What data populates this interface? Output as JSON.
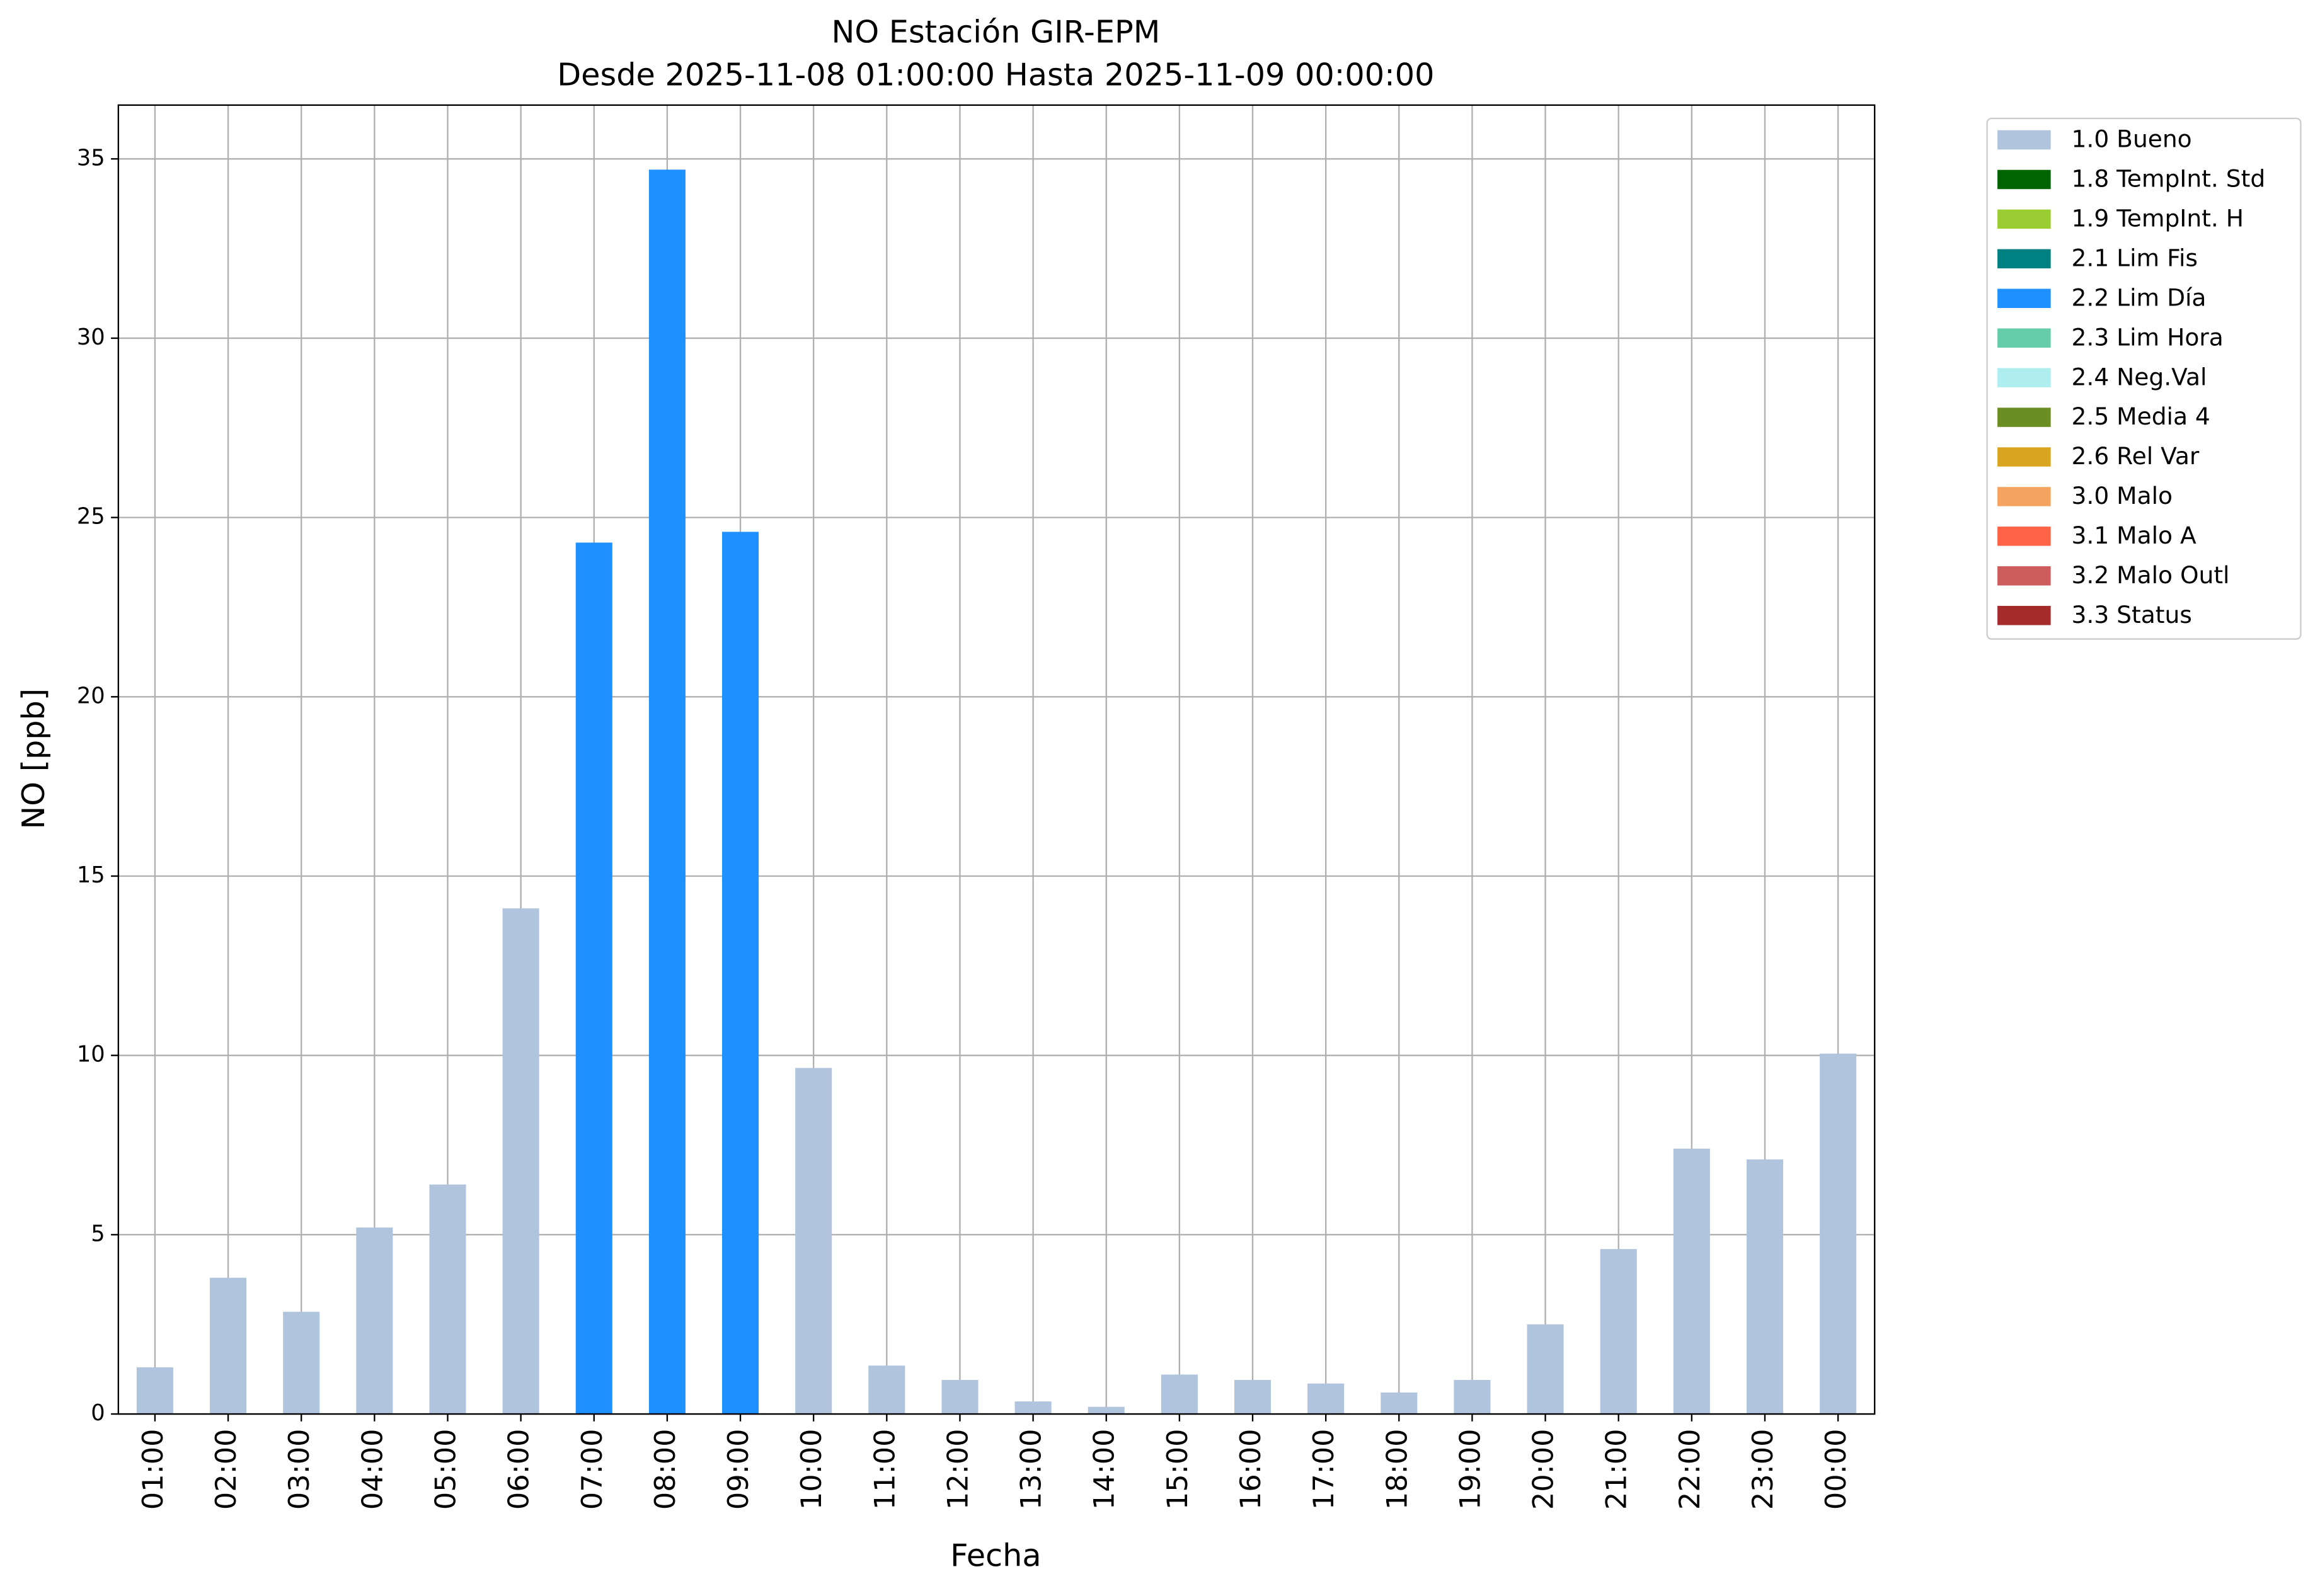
{
  "chart_data": {
    "type": "bar",
    "stacked": true,
    "title": "NO Estación GIR-EPM",
    "subtitle": "Desde 2025-11-08 01:00:00 Hasta 2025-11-09 00:00:00",
    "x_label": "Fecha",
    "y_label": "NO [ppb]",
    "categories": [
      "01:00",
      "02:00",
      "03:00",
      "04:00",
      "05:00",
      "06:00",
      "07:00",
      "08:00",
      "09:00",
      "10:00",
      "11:00",
      "12:00",
      "13:00",
      "14:00",
      "15:00",
      "16:00",
      "17:00",
      "18:00",
      "19:00",
      "20:00",
      "21:00",
      "22:00",
      "23:00",
      "00:00"
    ],
    "series": [
      {
        "name": "1.0 Bueno",
        "color": "#b0c4de",
        "values": [
          1.3,
          3.8,
          2.85,
          5.2,
          6.4,
          14.1,
          null,
          null,
          null,
          9.65,
          1.35,
          0.95,
          0.35,
          0.2,
          1.1,
          0.95,
          0.85,
          0.6,
          0.95,
          2.5,
          4.6,
          7.4,
          7.1,
          10.05
        ]
      },
      {
        "name": "1.8 TempInt. Std",
        "color": "#006400",
        "values": [
          null,
          null,
          null,
          null,
          null,
          null,
          null,
          null,
          null,
          null,
          null,
          null,
          null,
          null,
          null,
          null,
          null,
          null,
          null,
          null,
          null,
          null,
          null,
          null
        ]
      },
      {
        "name": "1.9 TempInt. H",
        "color": "#9acd32",
        "values": [
          null,
          null,
          null,
          null,
          null,
          null,
          null,
          null,
          null,
          null,
          null,
          null,
          null,
          null,
          null,
          null,
          null,
          null,
          null,
          null,
          null,
          null,
          null,
          null
        ]
      },
      {
        "name": "2.1 Lim Fis",
        "color": "#008080",
        "values": [
          null,
          null,
          null,
          null,
          null,
          null,
          null,
          null,
          null,
          null,
          null,
          null,
          null,
          null,
          null,
          null,
          null,
          null,
          null,
          null,
          null,
          null,
          null,
          null
        ]
      },
      {
        "name": "2.2 Lim Día",
        "color": "#1e90ff",
        "values": [
          null,
          null,
          null,
          null,
          null,
          null,
          24.3,
          34.7,
          24.6,
          null,
          null,
          null,
          null,
          null,
          null,
          null,
          null,
          null,
          null,
          null,
          null,
          null,
          null,
          null
        ]
      },
      {
        "name": "2.3 Lim Hora",
        "color": "#66cdaa",
        "values": [
          null,
          null,
          null,
          null,
          null,
          null,
          null,
          null,
          null,
          null,
          null,
          null,
          null,
          null,
          null,
          null,
          null,
          null,
          null,
          null,
          null,
          null,
          null,
          null
        ]
      },
      {
        "name": "2.4 Neg.Val",
        "color": "#afeeee",
        "values": [
          null,
          null,
          null,
          null,
          null,
          null,
          null,
          null,
          null,
          null,
          null,
          null,
          null,
          null,
          null,
          null,
          null,
          null,
          null,
          null,
          null,
          null,
          null,
          null
        ]
      },
      {
        "name": "2.5 Media 4",
        "color": "#6b8e23",
        "values": [
          null,
          null,
          null,
          null,
          null,
          null,
          null,
          null,
          null,
          null,
          null,
          null,
          null,
          null,
          null,
          null,
          null,
          null,
          null,
          null,
          null,
          null,
          null,
          null
        ]
      },
      {
        "name": "2.6 Rel Var",
        "color": "#daa520",
        "values": [
          null,
          null,
          null,
          null,
          null,
          null,
          null,
          null,
          null,
          null,
          null,
          null,
          null,
          null,
          null,
          null,
          null,
          null,
          null,
          null,
          null,
          null,
          null,
          null
        ]
      },
      {
        "name": "3.0 Malo",
        "color": "#f4a460",
        "values": [
          null,
          null,
          null,
          null,
          null,
          null,
          null,
          null,
          null,
          null,
          null,
          null,
          null,
          null,
          null,
          null,
          null,
          null,
          null,
          null,
          null,
          null,
          null,
          null
        ]
      },
      {
        "name": "3.1 Malo A",
        "color": "#ff6347",
        "values": [
          null,
          null,
          null,
          null,
          null,
          null,
          null,
          null,
          null,
          null,
          null,
          null,
          null,
          null,
          null,
          null,
          null,
          null,
          null,
          null,
          null,
          null,
          null,
          null
        ]
      },
      {
        "name": "3.2 Malo Outl",
        "color": "#cd5c5c",
        "values": [
          null,
          null,
          null,
          null,
          null,
          null,
          null,
          null,
          null,
          null,
          null,
          null,
          null,
          null,
          null,
          null,
          null,
          null,
          null,
          null,
          null,
          null,
          null,
          null
        ]
      },
      {
        "name": "3.3 Status",
        "color": "#a52a2a",
        "values": [
          null,
          null,
          null,
          null,
          null,
          null,
          null,
          null,
          null,
          null,
          null,
          null,
          null,
          null,
          null,
          null,
          null,
          null,
          null,
          null,
          null,
          null,
          null,
          null
        ]
      }
    ],
    "ylim": [
      0,
      36.5
    ],
    "yticks": [
      0,
      5,
      10,
      15,
      20,
      25,
      30,
      35
    ],
    "grid": true,
    "legend": "outside-right"
  }
}
